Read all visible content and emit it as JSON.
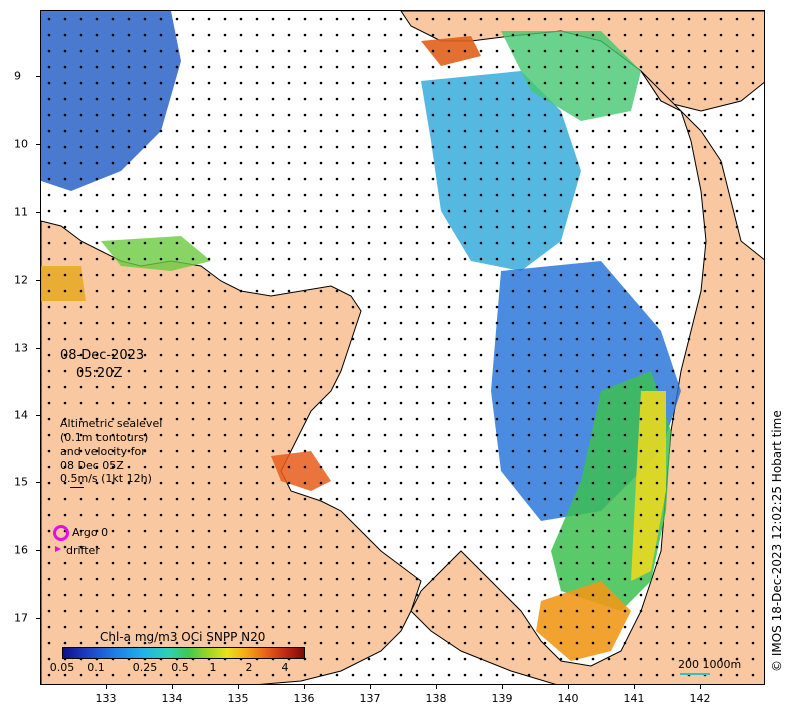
{
  "map": {
    "date": "08-Dec-2023",
    "time": "05:20Z",
    "legend_block": [
      "Altimetric sealevel",
      "(0.1m contours)",
      "and velocity for",
      "08 Dec 05Z",
      "0.5m/s (1kt 12h)"
    ],
    "argo_label": "Argo 0",
    "drifter_label": "drifter",
    "colorbar_title": "Chl-a mg/m3 OCi SNPP N20",
    "colorbar_ticks": [
      "0.05",
      "0.1",
      "0.25",
      "0.5",
      "1",
      "2",
      "4"
    ],
    "longitude_ticks": [
      "133",
      "134",
      "135",
      "136",
      "137",
      "138",
      "139",
      "140",
      "141",
      "142"
    ],
    "latitude_ticks": [
      "9",
      "10",
      "11",
      "12",
      "13",
      "14",
      "15",
      "16",
      "17"
    ],
    "scale_label": "200  1000m",
    "copyright": "© IMOS 18-Dec-2023 12:02:25 Hobart time",
    "colors": {
      "land": "#f9c8a0",
      "sea": "#ffffff",
      "argo": "#e010e0",
      "coast": "#000000"
    }
  }
}
